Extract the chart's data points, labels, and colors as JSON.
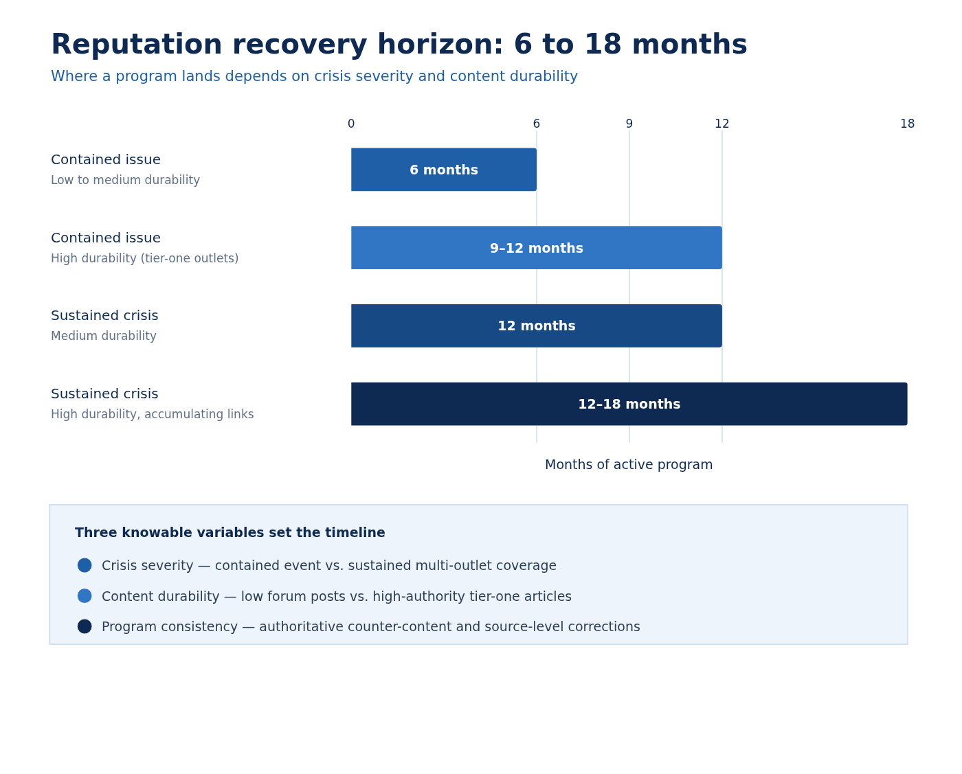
{
  "chart_data": {
    "type": "bar",
    "orientation": "horizontal",
    "title": "Reputation recovery horizon: 6 to 18 months",
    "subtitle": "Where a program lands depends on crisis severity and content durability",
    "categories": [
      "Contained issue\nLow to medium durability",
      "Contained issue\nHigh durability (tier-one outlets)",
      "Sustained crisis\nMedium durability",
      "Sustained crisis\nHigh durability, accumulating links"
    ],
    "values": [
      6,
      12,
      12,
      18
    ],
    "value_labels": [
      "6 months",
      "9–12 months",
      "12 months",
      "12–18 months"
    ],
    "colors": [
      "#1f5fa8",
      "#3176c4",
      "#174a85",
      "#0e2a52"
    ],
    "xlabel": "Months of active program",
    "xlim": [
      0,
      18
    ],
    "xticks": [
      0,
      6,
      9,
      12,
      18
    ],
    "grid": "x",
    "annotations": [
      "Three knowable variables set the timeline",
      "Crisis severity — contained event vs. sustained multi-outlet coverage",
      "Content durability — low forum posts vs. high-authority tier-one articles",
      "Program consistency — authoritative counter-content and source-level corrections"
    ]
  }
}
